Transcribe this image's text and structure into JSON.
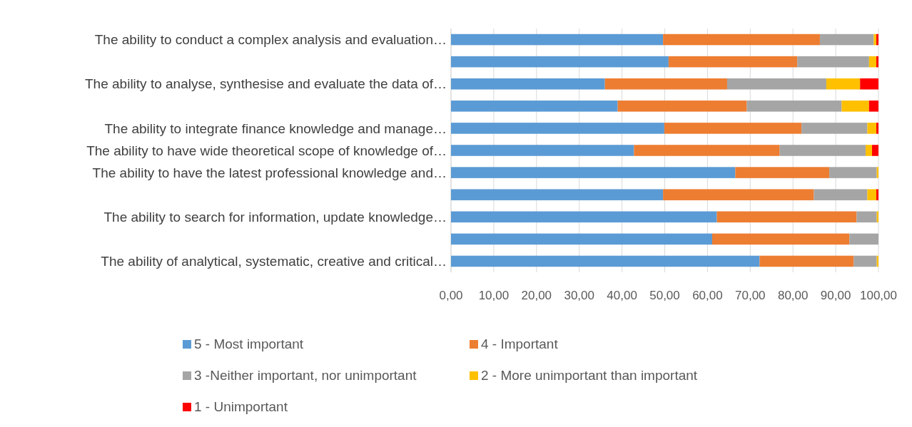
{
  "chart_data": {
    "type": "bar",
    "orientation": "horizontal",
    "stacked": true,
    "categories": [
      "The ability to conduct a complex analysis and evaluation…",
      null,
      "The ability to analyse, synthesise and evaluate the data of…",
      null,
      "The ability to integrate finance knowledge and manage…",
      "The ability to have wide theoretical scope of knowledge of…",
      "The ability to have the latest professional knowledge and…",
      null,
      "The ability to search for information, update knowledge…",
      null,
      "The ability of analytical, systematic,  creative and critical…"
    ],
    "series": [
      {
        "name": "5 - Most important",
        "color": "#5b9bd5",
        "values": [
          49.6,
          50.9,
          36.0,
          39.0,
          49.9,
          42.8,
          66.5,
          49.6,
          62.2,
          61.1,
          72.2
        ]
      },
      {
        "name": "4 - Important",
        "color": "#ed7d31",
        "values": [
          36.7,
          30.1,
          28.6,
          30.2,
          32.1,
          34.1,
          22.0,
          35.3,
          32.7,
          32.1,
          22.0
        ]
      },
      {
        "name": "3 -Neither important, nor unimportant",
        "color": "#a5a5a5",
        "values": [
          12.6,
          16.8,
          23.2,
          22.2,
          15.4,
          20.1,
          11.1,
          12.5,
          4.7,
          6.8,
          5.4
        ]
      },
      {
        "name": "2 - More unimportant than important",
        "color": "#ffc000",
        "values": [
          0.6,
          1.7,
          7.9,
          6.4,
          2.1,
          1.5,
          0.4,
          2.1,
          0.4,
          0,
          0.4
        ]
      },
      {
        "name": "1 - Unimportant",
        "color": "#ff0000",
        "values": [
          0.5,
          0.5,
          4.3,
          2.2,
          0.5,
          1.5,
          0,
          0.5,
          0,
          0,
          0
        ]
      }
    ],
    "xlim": [
      0,
      100
    ],
    "xticks": [
      {
        "value": 0,
        "label": "0,00"
      },
      {
        "value": 10,
        "label": "10,00"
      },
      {
        "value": 20,
        "label": "20,00"
      },
      {
        "value": 30,
        "label": "30,00"
      },
      {
        "value": 40,
        "label": "40,00"
      },
      {
        "value": 50,
        "label": "50,00"
      },
      {
        "value": 60,
        "label": "60,00"
      },
      {
        "value": 70,
        "label": "70,00"
      },
      {
        "value": 80,
        "label": "80,00"
      },
      {
        "value": 90,
        "label": "90,00"
      },
      {
        "value": 100,
        "label": "100,00"
      }
    ],
    "grid": "x",
    "legend": "bottom"
  }
}
